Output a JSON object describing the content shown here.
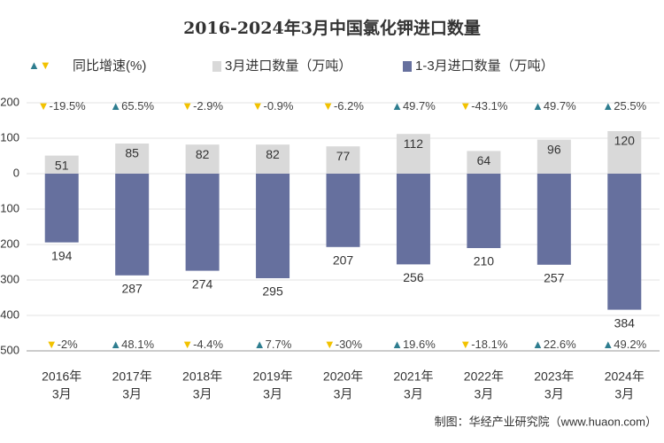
{
  "chart_data": {
    "type": "bar",
    "title": "2016-2024年3月中国氯化钾进口数量",
    "growth_legend": "同比增速(%)",
    "legend_arrows": "▲▼",
    "categories": [
      [
        "2016年",
        "3月"
      ],
      [
        "2017年",
        "3月"
      ],
      [
        "2018年",
        "3月"
      ],
      [
        "2019年",
        "3月"
      ],
      [
        "2020年",
        "3月"
      ],
      [
        "2021年",
        "3月"
      ],
      [
        "2022年",
        "3月"
      ],
      [
        "2023年",
        "3月"
      ],
      [
        "2024年",
        "3月"
      ]
    ],
    "series": [
      {
        "name": "3月进口数量（万吨）",
        "color": "#d9d9d9",
        "values": [
          51,
          85,
          82,
          82,
          77,
          112,
          64,
          96,
          120
        ],
        "growth": [
          -19.5,
          65.5,
          -2.9,
          -0.9,
          -6.2,
          49.7,
          -43.1,
          49.7,
          25.5
        ],
        "growth_labels": [
          "▼-19.5%",
          "▲65.5%",
          "▼-2.9%",
          "▼-0.9%",
          "▼-6.2%",
          "▲49.7%",
          "▼-43.1%",
          "▲49.7%",
          "▲25.5%"
        ]
      },
      {
        "name": "1-3月进口数量（万吨）",
        "color": "#66709e",
        "values": [
          -194,
          -287,
          -274,
          -295,
          -207,
          -256,
          -210,
          -257,
          -384
        ],
        "value_labels": [
          "194",
          "287",
          "274",
          "295",
          "207",
          "256",
          "210",
          "257",
          "384"
        ],
        "growth": [
          -2,
          48.1,
          -4.4,
          7.7,
          -30,
          19.6,
          -18.1,
          22.6,
          49.2
        ],
        "growth_labels": [
          "▼-2%",
          "▲48.1%",
          "▼-4.4%",
          "▲7.7%",
          "▼-30%",
          "▲19.6%",
          "▼-18.1%",
          "▲22.6%",
          "▲49.2%"
        ]
      }
    ],
    "up_color": "#2e7d8f",
    "down_color": "#f2c200",
    "ylim": [
      -500,
      200
    ],
    "yticks": [
      {
        "value": 200,
        "label": "200"
      },
      {
        "value": 100,
        "label": "100"
      },
      0,
      {
        "value": -100,
        "label": "100"
      },
      {
        "value": -200,
        "label": "200"
      },
      {
        "value": -300,
        "label": "300"
      },
      {
        "value": -400,
        "label": "400"
      },
      {
        "value": -500,
        "label": "500"
      }
    ],
    "grid": true,
    "source": "制图：华经产业研究院（www.huaon.com）"
  }
}
